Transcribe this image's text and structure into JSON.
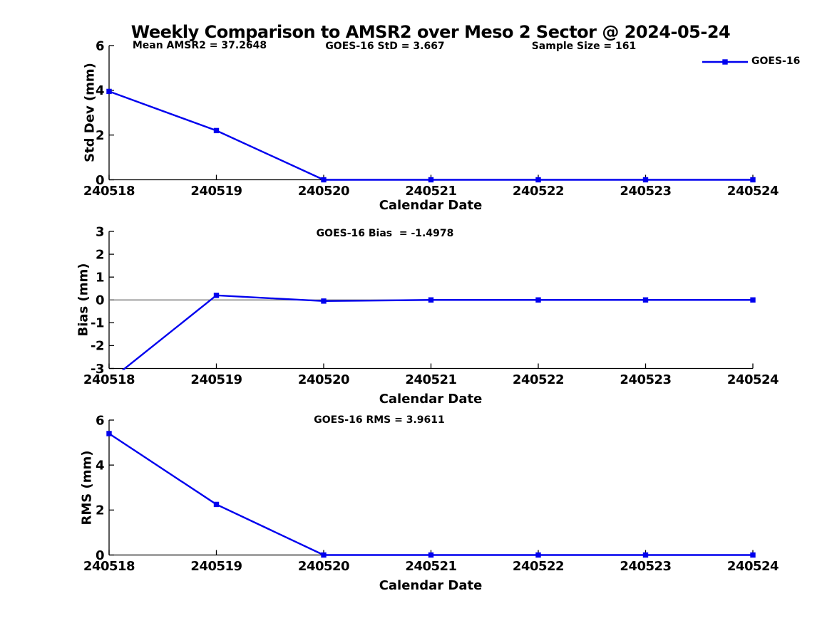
{
  "figure": {
    "title": "Weekly Comparison to AMSR2 over Meso 2 Sector @ 2024-05-24",
    "background_color": "#ffffff",
    "axis_color": "#000000",
    "zero_line_color": "#666666",
    "legend": {
      "label": "GOES-16",
      "position": "top-right-outside"
    }
  },
  "chart_data": [
    {
      "id": "std-dev",
      "type": "line",
      "categories": [
        "240518",
        "240519",
        "240520",
        "240521",
        "240522",
        "240523",
        "240524"
      ],
      "series": [
        {
          "name": "GOES-16",
          "color": "#0000ee",
          "marker": "square",
          "values": [
            3.95,
            2.2,
            0,
            0,
            0,
            0,
            0
          ]
        }
      ],
      "annotations": [
        "Mean AMSR2 = 37.2648",
        "GOES-16 StD = 3.667",
        "Sample Size = 161"
      ],
      "xlabel": "Calendar Date",
      "ylabel": "Std Dev (mm)",
      "ylim": [
        0,
        6
      ],
      "yticks": [
        0,
        2,
        4,
        6
      ],
      "grid": false,
      "zero_line": false
    },
    {
      "id": "bias",
      "type": "line",
      "categories": [
        "240518",
        "240519",
        "240520",
        "240521",
        "240522",
        "240523",
        "240524"
      ],
      "series": [
        {
          "name": "GOES-16",
          "color": "#0000ee",
          "marker": "square",
          "values": [
            -3.55,
            0.2,
            -0.05,
            0,
            0,
            0,
            0
          ]
        }
      ],
      "annotations": [
        "GOES-16 Bias  = -1.4978"
      ],
      "xlabel": "Calendar Date",
      "ylabel": "Bias (mm)",
      "ylim": [
        -3,
        3
      ],
      "yticks": [
        -3,
        -2,
        -1,
        0,
        1,
        2,
        3
      ],
      "grid": false,
      "zero_line": true
    },
    {
      "id": "rms",
      "type": "line",
      "categories": [
        "240518",
        "240519",
        "240520",
        "240521",
        "240522",
        "240523",
        "240524"
      ],
      "series": [
        {
          "name": "GOES-16",
          "color": "#0000ee",
          "marker": "square",
          "values": [
            5.4,
            2.25,
            0,
            0,
            0,
            0,
            0
          ]
        }
      ],
      "annotations": [
        "GOES-16 RMS = 3.9611"
      ],
      "xlabel": "Calendar Date",
      "ylabel": "RMS (mm)",
      "ylim": [
        0,
        6
      ],
      "yticks": [
        0,
        2,
        4,
        6
      ],
      "grid": false,
      "zero_line": false
    }
  ]
}
